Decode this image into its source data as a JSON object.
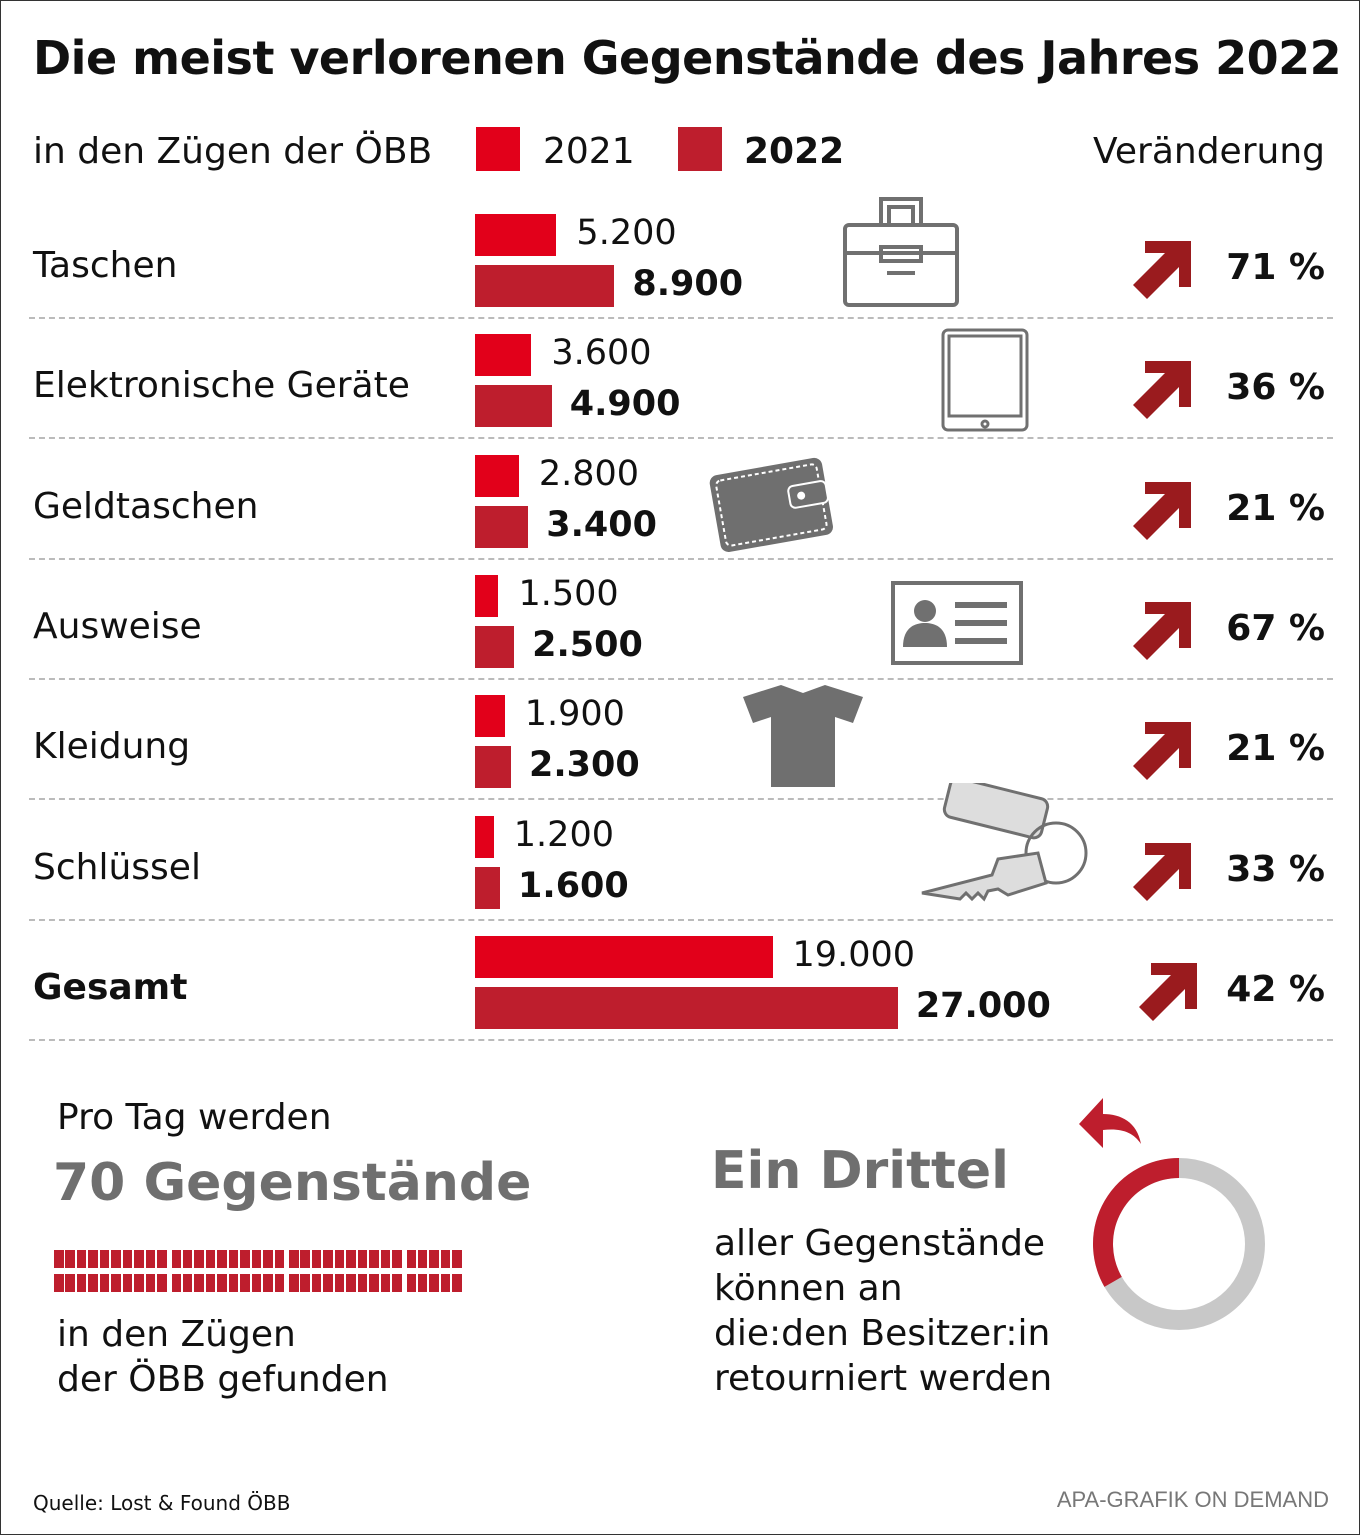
{
  "title": "Die meist verlorenen Gegenstände des Jahres 2022",
  "subtitle": "in den Zügen der ÖBB",
  "change_header": "Veränderung",
  "colors": {
    "y2021": "#e2001a",
    "y2022": "#be1e2d",
    "arrow": "#9a1b1e",
    "icon": "#707070",
    "donut_grey": "#c8c8c8"
  },
  "chart_data": {
    "type": "bar",
    "orientation": "horizontal",
    "categories": [
      "Taschen",
      "Elektronische Geräte",
      "Geldtaschen",
      "Ausweise",
      "Kleidung",
      "Schlüssel",
      "Gesamt"
    ],
    "series": [
      {
        "name": "2021",
        "values": [
          5200,
          3600,
          2800,
          1500,
          1900,
          1200,
          19000
        ],
        "labels": [
          "5.200",
          "3.600",
          "2.800",
          "1.500",
          "1.900",
          "1.200",
          "19.000"
        ]
      },
      {
        "name": "2022",
        "values": [
          8900,
          4900,
          3400,
          2500,
          2300,
          1600,
          27000
        ],
        "labels": [
          "8.900",
          "4.900",
          "3.400",
          "2.500",
          "2.300",
          "1.600",
          "27.000"
        ]
      }
    ],
    "change": [
      "71 %",
      "36 %",
      "21 %",
      "67 %",
      "21 %",
      "33 %",
      "42 %"
    ],
    "icons": [
      "briefcase-icon",
      "tablet-icon",
      "wallet-icon",
      "id-card-icon",
      "tshirt-icon",
      "keys-icon",
      ""
    ],
    "legend": [
      "2021",
      "2022"
    ],
    "legend_placement": "top"
  },
  "per_day": {
    "intro": "Pro Tag werden",
    "headline": "70 Gegenstände",
    "count": 70,
    "outro1": "in den Zügen",
    "outro2": "der ÖBB gefunden"
  },
  "returned": {
    "headline": "Ein Drittel",
    "line1": "aller Gegenstände",
    "line2": "können an",
    "line3": "die:den Besitzer:in",
    "line4": "retourniert werden",
    "fraction": 0.333
  },
  "source": "Quelle: Lost & Found ÖBB",
  "credit": "APA-GRAFIK ON DEMAND"
}
